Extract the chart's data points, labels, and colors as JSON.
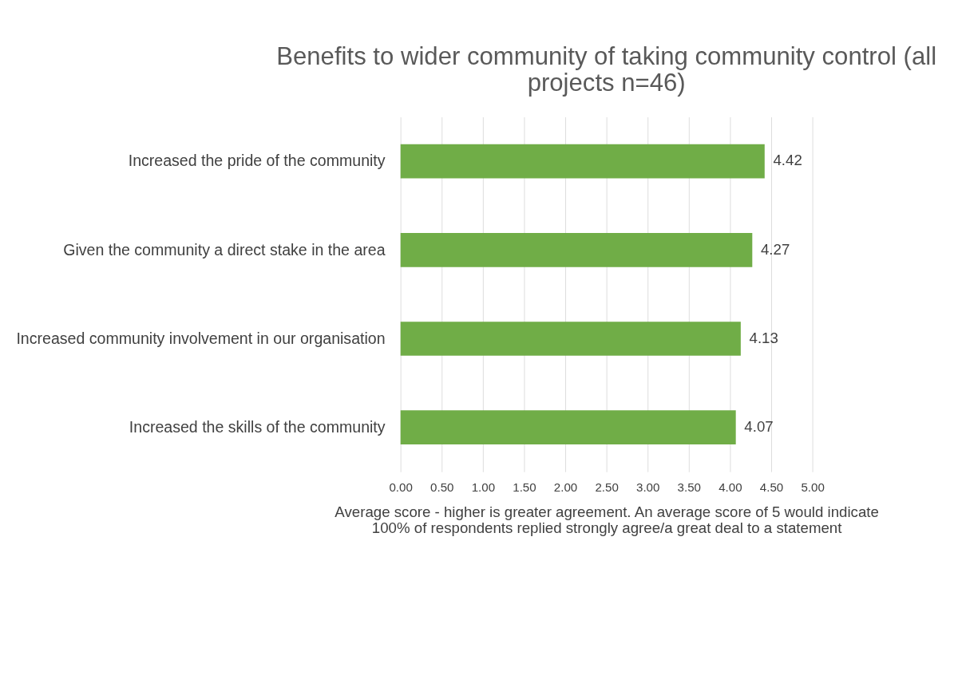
{
  "chart_data": {
    "type": "bar",
    "orientation": "horizontal",
    "title": "Benefits to wider community of taking community control (all projects n=46)",
    "xlabel": "Average score - higher is greater agreement. An average score of 5 would indicate 100% of respondents replied strongly agree/a great deal to a statement",
    "categories": [
      "Increased the pride of the community",
      "Given the community a direct stake in the area",
      "Increased community involvement in our organisation",
      "Increased the skills of the community"
    ],
    "values": [
      4.42,
      4.27,
      4.13,
      4.07
    ],
    "color": "#70ad47",
    "data_labels": true,
    "grid": "x",
    "xlim": [
      0,
      5
    ],
    "xticks": [
      {
        "value": 0,
        "label": "0.00"
      },
      {
        "value": 0.5,
        "label": "0.50"
      },
      {
        "value": 1,
        "label": "1.00"
      },
      {
        "value": 1.5,
        "label": "1.50"
      },
      {
        "value": 2,
        "label": "2.00"
      },
      {
        "value": 2.5,
        "label": "2.50"
      },
      {
        "value": 3,
        "label": "3.00"
      },
      {
        "value": 3.5,
        "label": "3.50"
      },
      {
        "value": 4,
        "label": "4.00"
      },
      {
        "value": 4.5,
        "label": "4.50"
      },
      {
        "value": 5,
        "label": "5.00"
      }
    ]
  }
}
